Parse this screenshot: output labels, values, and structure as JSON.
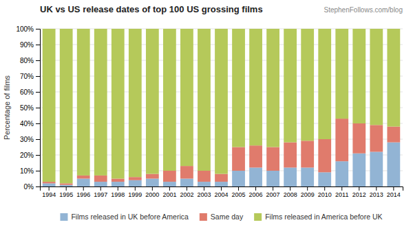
{
  "chart_data": {
    "type": "bar",
    "stacked": true,
    "title": "UK vs US release dates of top 100 US grossing films",
    "subtitle": "StephenFollows.com/blog",
    "ylabel": "Percentage of films",
    "categories": [
      "1994",
      "1995",
      "1996",
      "1997",
      "1998",
      "1999",
      "2000",
      "2001",
      "2002",
      "2003",
      "2004",
      "2005",
      "2006",
      "2007",
      "2008",
      "2009",
      "2010",
      "2011",
      "2012",
      "2013",
      "2014"
    ],
    "series": [
      {
        "name": "Films released in UK before America",
        "color": "#92b4d4",
        "values": [
          2,
          1,
          5,
          3,
          3,
          4,
          5,
          3,
          5,
          3,
          3,
          10,
          12,
          10,
          12,
          12,
          9,
          16,
          21,
          22,
          28
        ]
      },
      {
        "name": "Same day",
        "color": "#e07b6c",
        "values": [
          1,
          1,
          2,
          4,
          2,
          2,
          3,
          7,
          8,
          7,
          5,
          15,
          14,
          15,
          16,
          17,
          21,
          27,
          19,
          17,
          10
        ]
      },
      {
        "name": "Films released in America before UK",
        "color": "#b5c95a",
        "values": [
          97,
          98,
          93,
          93,
          95,
          94,
          92,
          90,
          87,
          90,
          92,
          75,
          74,
          75,
          72,
          71,
          70,
          57,
          60,
          61,
          62
        ]
      }
    ],
    "ylim": [
      0,
      100
    ],
    "yticks": [
      {
        "value": 0,
        "label": "0%"
      },
      {
        "value": 10,
        "label": "10%"
      },
      {
        "value": 20,
        "label": "20%"
      },
      {
        "value": 30,
        "label": "30%"
      },
      {
        "value": 40,
        "label": "40%"
      },
      {
        "value": 50,
        "label": "50%"
      },
      {
        "value": 60,
        "label": "60%"
      },
      {
        "value": 70,
        "label": "70%"
      },
      {
        "value": 80,
        "label": "80%"
      },
      {
        "value": 90,
        "label": "90%"
      },
      {
        "value": 100,
        "label": "100%"
      }
    ],
    "grid": true,
    "legend": "bottom"
  }
}
